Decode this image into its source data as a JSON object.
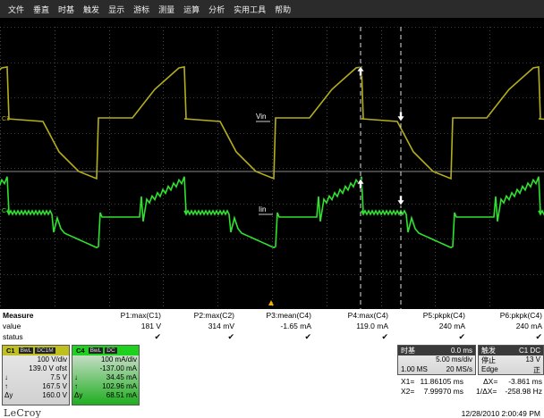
{
  "menu": [
    "文件",
    "垂直",
    "时基",
    "触发",
    "显示",
    "游标",
    "测量",
    "运算",
    "分析",
    "实用工具",
    "帮助"
  ],
  "screen": {
    "colors": {
      "c1": "#b5ae1c",
      "c4": "#2fe22f",
      "grid": "#6e6e6e",
      "background": "#000000"
    },
    "c1_label": "C1",
    "c4_label": "C4",
    "vin_label": "Vin",
    "iin_label": "Iin"
  },
  "measure": {
    "title": "Measure",
    "row_labels": [
      "value",
      "status"
    ],
    "params": [
      {
        "name": "P1:max(C1)",
        "value": "181 V"
      },
      {
        "name": "P2:max(C2)",
        "value": "314 mV"
      },
      {
        "name": "P3:mean(C4)",
        "value": "-1.65 mA"
      },
      {
        "name": "P4:max(C4)",
        "value": "119.0 mA"
      },
      {
        "name": "P5:pkpk(C4)",
        "value": "240 mA"
      },
      {
        "name": "P6:pkpk(C4)",
        "value": "240 mA"
      }
    ],
    "status_mark": "✔"
  },
  "c1": {
    "tag": "C1",
    "chips": [
      "BwL",
      "DC1M"
    ],
    "vdiv": "100 V/div",
    "offset": "139.0 V ofst",
    "rows": [
      {
        "sym": "↓",
        "value": "7.5 V"
      },
      {
        "sym": "↑",
        "value": "167.5 V"
      },
      {
        "sym": "Δy",
        "value": "160.0 V"
      }
    ]
  },
  "c4": {
    "tag": "C4",
    "chips": [
      "BwL",
      "DC"
    ],
    "vdiv": "100 mA/div",
    "offset": "-137.00 mA",
    "rows": [
      {
        "sym": "↓",
        "value": "34.45 mA"
      },
      {
        "sym": "↑",
        "value": "102.96 mA"
      },
      {
        "sym": "Δy",
        "value": "68.51 mA"
      }
    ]
  },
  "timebase": {
    "title": "时基",
    "pos": "0.0 ms",
    "tdiv": "5.00 ms/div",
    "samples": "1.00 MS",
    "rate": "20 MS/s"
  },
  "trigger": {
    "title": "触发",
    "channel": "C1 DC",
    "mode": "停止",
    "level": "13 V",
    "type": "Edge",
    "slope": "正"
  },
  "cursors": {
    "x1_label": "X1=",
    "x1": "11.86105 ms",
    "dx_label": "ΔX=",
    "dx": "-3.861 ms",
    "x2_label": "X2=",
    "x2": "7.99970 ms",
    "inv_dx_label": "1/ΔX=",
    "inv_dx": "-258.98 Hz"
  },
  "footer": {
    "logo": "LeCroy",
    "datetime": "12/28/2010 2:00:49 PM"
  }
}
